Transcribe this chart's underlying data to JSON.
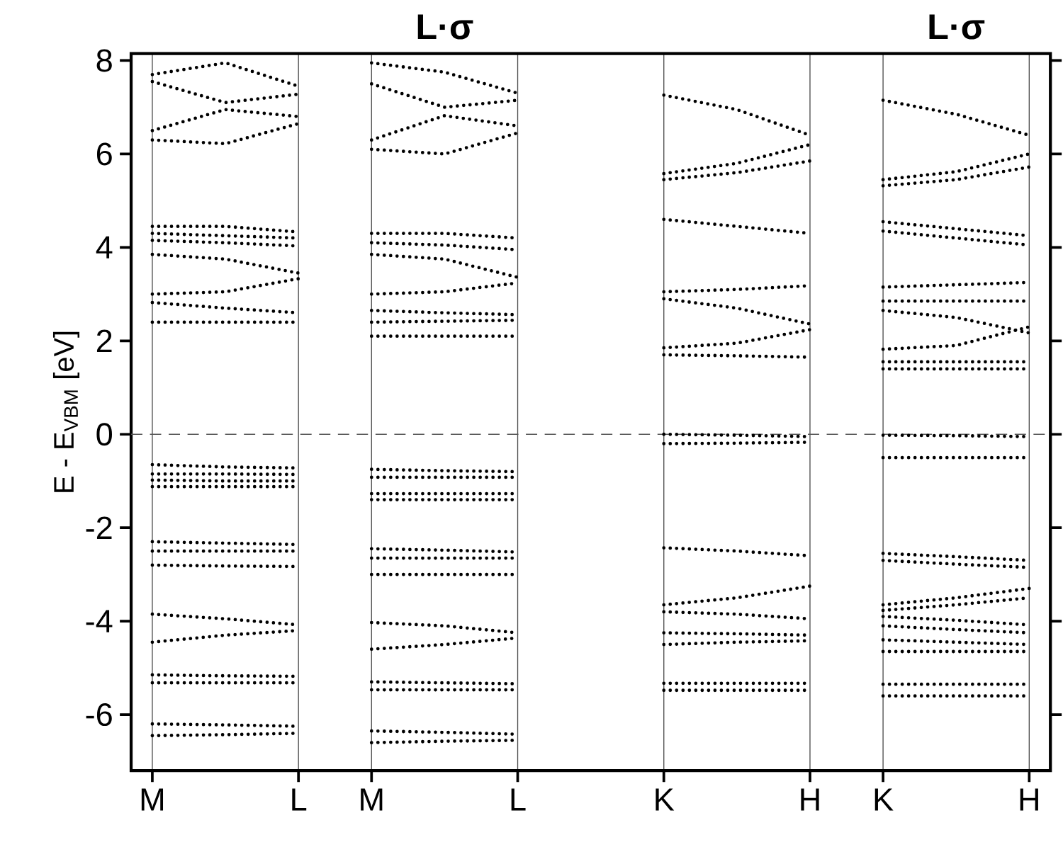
{
  "chart_data": {
    "type": "line",
    "ylabel": "E - E$_{VBM}$ [eV]",
    "ylim": [
      -7.2,
      8.15
    ],
    "categories": [
      "M",
      null,
      "L",
      "M",
      null,
      "L",
      null,
      "K",
      null,
      "H",
      "K",
      null,
      "H"
    ],
    "yticks": [
      -6,
      -4,
      -2,
      0,
      2,
      4,
      6,
      8
    ],
    "grid": "x",
    "line_style": "dotted",
    "ref_lines": [
      {
        "axis": "y",
        "value": 0,
        "line_style": "dashed",
        "color": "#555555"
      }
    ],
    "annotations": [
      "L·σ",
      "L·σ"
    ],
    "series": [
      {
        "values": [
          7.7,
          7.95,
          7.45,
          null,
          null,
          null,
          null,
          null,
          null,
          null,
          null,
          null,
          null
        ],
        "color": "#000000"
      },
      {
        "values": [
          7.55,
          7.1,
          7.28,
          null,
          null,
          null,
          null,
          null,
          null,
          null,
          null,
          null,
          null
        ],
        "color": "#000000"
      },
      {
        "values": [
          6.5,
          6.95,
          6.8,
          null,
          null,
          null,
          null,
          null,
          null,
          null,
          null,
          null,
          null
        ],
        "color": "#000000"
      },
      {
        "values": [
          6.3,
          6.22,
          6.65,
          null,
          null,
          null,
          null,
          null,
          null,
          null,
          null,
          null,
          null
        ],
        "color": "#000000"
      },
      {
        "values": [
          4.45,
          4.45,
          4.33,
          null,
          null,
          null,
          null,
          null,
          null,
          null,
          null,
          null,
          null
        ],
        "color": "#000000"
      },
      {
        "values": [
          4.3,
          4.25,
          4.2,
          null,
          null,
          null,
          null,
          null,
          null,
          null,
          null,
          null,
          null
        ],
        "color": "#000000"
      },
      {
        "values": [
          4.15,
          4.1,
          4.03,
          null,
          null,
          null,
          null,
          null,
          null,
          null,
          null,
          null,
          null
        ],
        "color": "#000000"
      },
      {
        "values": [
          3.85,
          3.75,
          3.45,
          null,
          null,
          null,
          null,
          null,
          null,
          null,
          null,
          null,
          null
        ],
        "color": "#000000"
      },
      {
        "values": [
          3.0,
          3.05,
          3.33,
          null,
          null,
          null,
          null,
          null,
          null,
          null,
          null,
          null,
          null
        ],
        "color": "#000000"
      },
      {
        "values": [
          2.82,
          2.7,
          2.6,
          null,
          null,
          null,
          null,
          null,
          null,
          null,
          null,
          null,
          null
        ],
        "color": "#000000"
      },
      {
        "values": [
          2.4,
          2.4,
          2.4,
          null,
          null,
          null,
          null,
          null,
          null,
          null,
          null,
          null,
          null
        ],
        "color": "#000000"
      },
      {
        "values": [
          -0.65,
          -0.7,
          -0.72,
          null,
          null,
          null,
          null,
          null,
          null,
          null,
          null,
          null,
          null
        ],
        "color": "#000000"
      },
      {
        "values": [
          -0.85,
          -0.85,
          -0.86,
          null,
          null,
          null,
          null,
          null,
          null,
          null,
          null,
          null,
          null
        ],
        "color": "#000000"
      },
      {
        "values": [
          -0.98,
          -1.0,
          -1.0,
          null,
          null,
          null,
          null,
          null,
          null,
          null,
          null,
          null,
          null
        ],
        "color": "#000000"
      },
      {
        "values": [
          -1.12,
          -1.12,
          -1.12,
          null,
          null,
          null,
          null,
          null,
          null,
          null,
          null,
          null,
          null
        ],
        "color": "#000000"
      },
      {
        "values": [
          -2.3,
          -2.33,
          -2.36,
          null,
          null,
          null,
          null,
          null,
          null,
          null,
          null,
          null,
          null
        ],
        "color": "#000000"
      },
      {
        "values": [
          -2.5,
          -2.5,
          -2.5,
          null,
          null,
          null,
          null,
          null,
          null,
          null,
          null,
          null,
          null
        ],
        "color": "#000000"
      },
      {
        "values": [
          -2.8,
          -2.82,
          -2.83,
          null,
          null,
          null,
          null,
          null,
          null,
          null,
          null,
          null,
          null
        ],
        "color": "#000000"
      },
      {
        "values": [
          -3.85,
          -3.95,
          -4.08,
          null,
          null,
          null,
          null,
          null,
          null,
          null,
          null,
          null,
          null
        ],
        "color": "#000000"
      },
      {
        "values": [
          -4.45,
          -4.3,
          -4.2,
          null,
          null,
          null,
          null,
          null,
          null,
          null,
          null,
          null,
          null
        ],
        "color": "#000000"
      },
      {
        "values": [
          -5.15,
          -5.17,
          -5.18,
          null,
          null,
          null,
          null,
          null,
          null,
          null,
          null,
          null,
          null
        ],
        "color": "#000000"
      },
      {
        "values": [
          -5.32,
          -5.32,
          -5.32,
          null,
          null,
          null,
          null,
          null,
          null,
          null,
          null,
          null,
          null
        ],
        "color": "#000000"
      },
      {
        "values": [
          -6.2,
          -6.22,
          -6.25,
          null,
          null,
          null,
          null,
          null,
          null,
          null,
          null,
          null,
          null
        ],
        "color": "#000000"
      },
      {
        "values": [
          -6.45,
          -6.43,
          -6.4,
          null,
          null,
          null,
          null,
          null,
          null,
          null,
          null,
          null,
          null
        ],
        "color": "#000000"
      },
      {
        "values": [
          null,
          null,
          null,
          7.95,
          7.75,
          7.3,
          null,
          null,
          null,
          null,
          null,
          null,
          null
        ],
        "color": "#000000"
      },
      {
        "values": [
          null,
          null,
          null,
          7.5,
          7.0,
          7.15,
          null,
          null,
          null,
          null,
          null,
          null,
          null
        ],
        "color": "#000000"
      },
      {
        "values": [
          null,
          null,
          null,
          6.3,
          6.82,
          6.6,
          null,
          null,
          null,
          null,
          null,
          null,
          null
        ],
        "color": "#000000"
      },
      {
        "values": [
          null,
          null,
          null,
          6.1,
          6.0,
          6.45,
          null,
          null,
          null,
          null,
          null,
          null,
          null
        ],
        "color": "#000000"
      },
      {
        "values": [
          null,
          null,
          null,
          4.3,
          4.3,
          4.2,
          null,
          null,
          null,
          null,
          null,
          null,
          null
        ],
        "color": "#000000"
      },
      {
        "values": [
          null,
          null,
          null,
          4.1,
          4.05,
          3.95,
          null,
          null,
          null,
          null,
          null,
          null,
          null
        ],
        "color": "#000000"
      },
      {
        "values": [
          null,
          null,
          null,
          3.85,
          3.75,
          3.36,
          null,
          null,
          null,
          null,
          null,
          null,
          null
        ],
        "color": "#000000"
      },
      {
        "values": [
          null,
          null,
          null,
          3.0,
          3.05,
          3.24,
          null,
          null,
          null,
          null,
          null,
          null,
          null
        ],
        "color": "#000000"
      },
      {
        "values": [
          null,
          null,
          null,
          2.65,
          2.6,
          2.56,
          null,
          null,
          null,
          null,
          null,
          null,
          null
        ],
        "color": "#000000"
      },
      {
        "values": [
          null,
          null,
          null,
          2.4,
          2.42,
          2.44,
          null,
          null,
          null,
          null,
          null,
          null,
          null
        ],
        "color": "#000000"
      },
      {
        "values": [
          null,
          null,
          null,
          2.1,
          2.1,
          2.1,
          null,
          null,
          null,
          null,
          null,
          null,
          null
        ],
        "color": "#000000"
      },
      {
        "values": [
          null,
          null,
          null,
          -0.75,
          -0.78,
          -0.8,
          null,
          null,
          null,
          null,
          null,
          null,
          null
        ],
        "color": "#000000"
      },
      {
        "values": [
          null,
          null,
          null,
          -0.92,
          -0.92,
          -0.92,
          null,
          null,
          null,
          null,
          null,
          null,
          null
        ],
        "color": "#000000"
      },
      {
        "values": [
          null,
          null,
          null,
          -1.27,
          -1.27,
          -1.27,
          null,
          null,
          null,
          null,
          null,
          null,
          null
        ],
        "color": "#000000"
      },
      {
        "values": [
          null,
          null,
          null,
          -1.4,
          -1.4,
          -1.4,
          null,
          null,
          null,
          null,
          null,
          null,
          null
        ],
        "color": "#000000"
      },
      {
        "values": [
          null,
          null,
          null,
          -2.45,
          -2.48,
          -2.52,
          null,
          null,
          null,
          null,
          null,
          null,
          null
        ],
        "color": "#000000"
      },
      {
        "values": [
          null,
          null,
          null,
          -2.65,
          -2.65,
          -2.65,
          null,
          null,
          null,
          null,
          null,
          null,
          null
        ],
        "color": "#000000"
      },
      {
        "values": [
          null,
          null,
          null,
          -3.0,
          -3.0,
          -3.0,
          null,
          null,
          null,
          null,
          null,
          null,
          null
        ],
        "color": "#000000"
      },
      {
        "values": [
          null,
          null,
          null,
          -4.03,
          -4.1,
          -4.25,
          null,
          null,
          null,
          null,
          null,
          null,
          null
        ],
        "color": "#000000"
      },
      {
        "values": [
          null,
          null,
          null,
          -4.6,
          -4.5,
          -4.36,
          null,
          null,
          null,
          null,
          null,
          null,
          null
        ],
        "color": "#000000"
      },
      {
        "values": [
          null,
          null,
          null,
          -5.3,
          -5.32,
          -5.34,
          null,
          null,
          null,
          null,
          null,
          null,
          null
        ],
        "color": "#000000"
      },
      {
        "values": [
          null,
          null,
          null,
          -5.47,
          -5.47,
          -5.47,
          null,
          null,
          null,
          null,
          null,
          null,
          null
        ],
        "color": "#000000"
      },
      {
        "values": [
          null,
          null,
          null,
          -6.35,
          -6.38,
          -6.42,
          null,
          null,
          null,
          null,
          null,
          null,
          null
        ],
        "color": "#000000"
      },
      {
        "values": [
          null,
          null,
          null,
          -6.6,
          -6.57,
          -6.55,
          null,
          null,
          null,
          null,
          null,
          null,
          null
        ],
        "color": "#000000"
      },
      {
        "values": [
          null,
          null,
          null,
          null,
          null,
          null,
          null,
          7.26,
          6.95,
          6.4,
          null,
          null,
          null
        ],
        "color": "#000000"
      },
      {
        "values": [
          null,
          null,
          null,
          null,
          null,
          null,
          null,
          5.58,
          5.8,
          6.2,
          null,
          null,
          null
        ],
        "color": "#000000"
      },
      {
        "values": [
          null,
          null,
          null,
          null,
          null,
          null,
          null,
          5.45,
          5.6,
          5.85,
          null,
          null,
          null
        ],
        "color": "#000000"
      },
      {
        "values": [
          null,
          null,
          null,
          null,
          null,
          null,
          null,
          4.6,
          4.45,
          4.3,
          null,
          null,
          null
        ],
        "color": "#000000"
      },
      {
        "values": [
          null,
          null,
          null,
          null,
          null,
          null,
          null,
          3.05,
          3.1,
          3.18,
          null,
          null,
          null
        ],
        "color": "#000000"
      },
      {
        "values": [
          null,
          null,
          null,
          null,
          null,
          null,
          null,
          2.9,
          2.7,
          2.36,
          null,
          null,
          null
        ],
        "color": "#000000"
      },
      {
        "values": [
          null,
          null,
          null,
          null,
          null,
          null,
          null,
          1.85,
          1.95,
          2.24,
          null,
          null,
          null
        ],
        "color": "#000000"
      },
      {
        "values": [
          null,
          null,
          null,
          null,
          null,
          null,
          null,
          1.7,
          1.68,
          1.65,
          null,
          null,
          null
        ],
        "color": "#000000"
      },
      {
        "values": [
          null,
          null,
          null,
          null,
          null,
          null,
          null,
          0.0,
          -0.02,
          -0.05,
          null,
          null,
          null
        ],
        "color": "#000000"
      },
      {
        "values": [
          null,
          null,
          null,
          null,
          null,
          null,
          null,
          -0.2,
          -0.19,
          -0.17,
          null,
          null,
          null
        ],
        "color": "#000000"
      },
      {
        "values": [
          null,
          null,
          null,
          null,
          null,
          null,
          null,
          -2.43,
          -2.5,
          -2.6,
          null,
          null,
          null
        ],
        "color": "#000000"
      },
      {
        "values": [
          null,
          null,
          null,
          null,
          null,
          null,
          null,
          -3.65,
          -3.5,
          -3.25,
          null,
          null,
          null
        ],
        "color": "#000000"
      },
      {
        "values": [
          null,
          null,
          null,
          null,
          null,
          null,
          null,
          -3.8,
          -3.85,
          -3.95,
          null,
          null,
          null
        ],
        "color": "#000000"
      },
      {
        "values": [
          null,
          null,
          null,
          null,
          null,
          null,
          null,
          -4.25,
          -4.27,
          -4.3,
          null,
          null,
          null
        ],
        "color": "#000000"
      },
      {
        "values": [
          null,
          null,
          null,
          null,
          null,
          null,
          null,
          -4.5,
          -4.45,
          -4.42,
          null,
          null,
          null
        ],
        "color": "#000000"
      },
      {
        "values": [
          null,
          null,
          null,
          null,
          null,
          null,
          null,
          -5.33,
          -5.33,
          -5.33,
          null,
          null,
          null
        ],
        "color": "#000000"
      },
      {
        "values": [
          null,
          null,
          null,
          null,
          null,
          null,
          null,
          -5.48,
          -5.48,
          -5.48,
          null,
          null,
          null
        ],
        "color": "#000000"
      },
      {
        "values": [
          null,
          null,
          null,
          null,
          null,
          null,
          null,
          null,
          null,
          null,
          7.15,
          6.85,
          6.4
        ],
        "color": "#000000"
      },
      {
        "values": [
          null,
          null,
          null,
          null,
          null,
          null,
          null,
          null,
          null,
          null,
          5.45,
          5.62,
          6.0
        ],
        "color": "#000000"
      },
      {
        "values": [
          null,
          null,
          null,
          null,
          null,
          null,
          null,
          null,
          null,
          null,
          5.32,
          5.45,
          5.72
        ],
        "color": "#000000"
      },
      {
        "values": [
          null,
          null,
          null,
          null,
          null,
          null,
          null,
          null,
          null,
          null,
          4.55,
          4.4,
          4.25
        ],
        "color": "#000000"
      },
      {
        "values": [
          null,
          null,
          null,
          null,
          null,
          null,
          null,
          null,
          null,
          null,
          4.35,
          4.2,
          4.05
        ],
        "color": "#000000"
      },
      {
        "values": [
          null,
          null,
          null,
          null,
          null,
          null,
          null,
          null,
          null,
          null,
          3.15,
          3.2,
          3.25
        ],
        "color": "#000000"
      },
      {
        "values": [
          null,
          null,
          null,
          null,
          null,
          null,
          null,
          null,
          null,
          null,
          2.85,
          2.85,
          2.85
        ],
        "color": "#000000"
      },
      {
        "values": [
          null,
          null,
          null,
          null,
          null,
          null,
          null,
          null,
          null,
          null,
          2.65,
          2.5,
          2.17
        ],
        "color": "#000000"
      },
      {
        "values": [
          null,
          null,
          null,
          null,
          null,
          null,
          null,
          null,
          null,
          null,
          1.82,
          1.9,
          2.3
        ],
        "color": "#000000"
      },
      {
        "values": [
          null,
          null,
          null,
          null,
          null,
          null,
          null,
          null,
          null,
          null,
          1.55,
          1.55,
          1.55
        ],
        "color": "#000000"
      },
      {
        "values": [
          null,
          null,
          null,
          null,
          null,
          null,
          null,
          null,
          null,
          null,
          1.4,
          1.4,
          1.4
        ],
        "color": "#000000"
      },
      {
        "values": [
          null,
          null,
          null,
          null,
          null,
          null,
          null,
          null,
          null,
          null,
          -0.02,
          -0.03,
          -0.05
        ],
        "color": "#000000"
      },
      {
        "values": [
          null,
          null,
          null,
          null,
          null,
          null,
          null,
          null,
          null,
          null,
          -0.5,
          -0.5,
          -0.5
        ],
        "color": "#000000"
      },
      {
        "values": [
          null,
          null,
          null,
          null,
          null,
          null,
          null,
          null,
          null,
          null,
          -2.55,
          -2.62,
          -2.7
        ],
        "color": "#000000"
      },
      {
        "values": [
          null,
          null,
          null,
          null,
          null,
          null,
          null,
          null,
          null,
          null,
          -2.7,
          -2.78,
          -2.85
        ],
        "color": "#000000"
      },
      {
        "values": [
          null,
          null,
          null,
          null,
          null,
          null,
          null,
          null,
          null,
          null,
          -3.65,
          -3.5,
          -3.3
        ],
        "color": "#000000"
      },
      {
        "values": [
          null,
          null,
          null,
          null,
          null,
          null,
          null,
          null,
          null,
          null,
          -3.77,
          -3.65,
          -3.5
        ],
        "color": "#000000"
      },
      {
        "values": [
          null,
          null,
          null,
          null,
          null,
          null,
          null,
          null,
          null,
          null,
          -3.9,
          -3.98,
          -4.08
        ],
        "color": "#000000"
      },
      {
        "values": [
          null,
          null,
          null,
          null,
          null,
          null,
          null,
          null,
          null,
          null,
          -4.1,
          -4.18,
          -4.25
        ],
        "color": "#000000"
      },
      {
        "values": [
          null,
          null,
          null,
          null,
          null,
          null,
          null,
          null,
          null,
          null,
          -4.4,
          -4.45,
          -4.5
        ],
        "color": "#000000"
      },
      {
        "values": [
          null,
          null,
          null,
          null,
          null,
          null,
          null,
          null,
          null,
          null,
          -4.65,
          -4.65,
          -4.65
        ],
        "color": "#000000"
      },
      {
        "values": [
          null,
          null,
          null,
          null,
          null,
          null,
          null,
          null,
          null,
          null,
          -5.35,
          -5.35,
          -5.35
        ],
        "color": "#000000"
      },
      {
        "values": [
          null,
          null,
          null,
          null,
          null,
          null,
          null,
          null,
          null,
          null,
          -5.6,
          -5.6,
          -5.6
        ],
        "color": "#000000"
      }
    ]
  }
}
